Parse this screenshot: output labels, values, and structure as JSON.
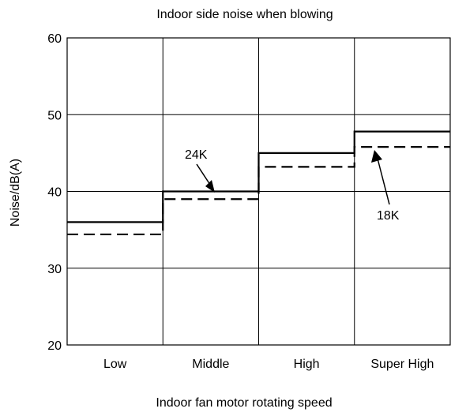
{
  "chart_data": {
    "type": "line",
    "step": true,
    "title": "Indoor side noise when blowing",
    "xlabel": "Indoor fan motor rotating speed",
    "ylabel": "Noise/dB(A)",
    "categories": [
      "Low",
      "Middle",
      "High",
      "Super High"
    ],
    "ylim": [
      20,
      60
    ],
    "yticks": [
      20,
      30,
      40,
      50,
      60
    ],
    "grid": true,
    "series": [
      {
        "name": "24K",
        "style": "solid",
        "color": "#000000",
        "values": [
          36.0,
          40.0,
          45.0,
          47.8
        ]
      },
      {
        "name": "18K",
        "style": "dashed",
        "color": "#000000",
        "values": [
          34.4,
          39.0,
          43.2,
          45.8
        ]
      }
    ]
  }
}
